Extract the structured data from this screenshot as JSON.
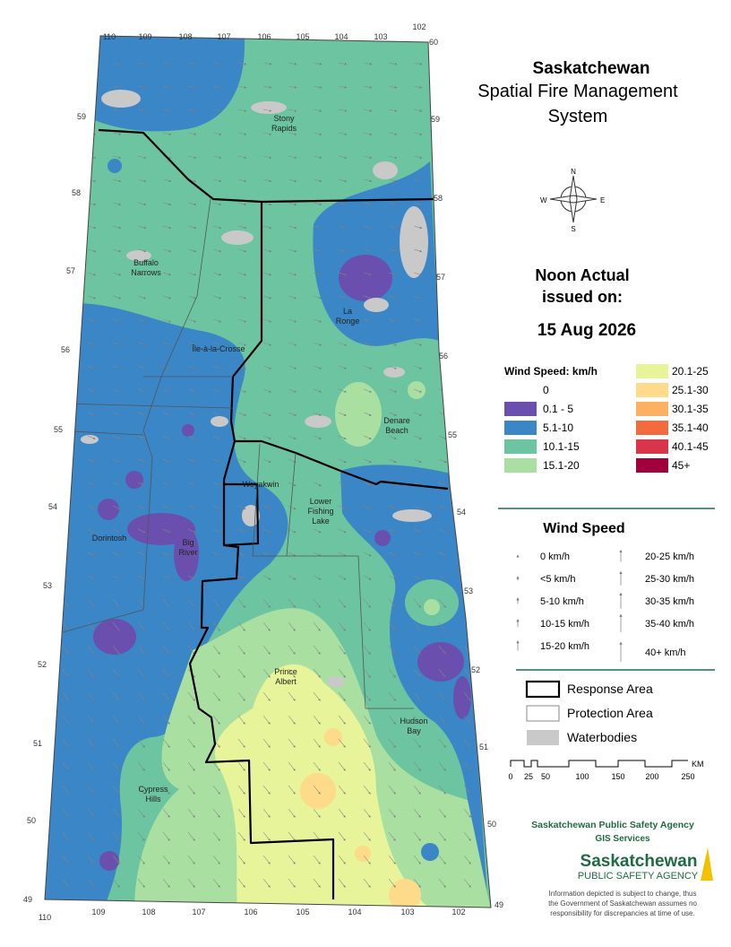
{
  "title": {
    "line1": "Saskatchewan",
    "line2": "Spatial Fire Management",
    "line3": "System"
  },
  "issue": {
    "line1": "Noon Actual",
    "line2": "issued on:",
    "date": "15 Aug 2026"
  },
  "compass": {
    "n": "N",
    "e": "E",
    "s": "S",
    "w": "W"
  },
  "speed_legend": {
    "title": "Wind Speed: km/h",
    "classes": [
      {
        "label": "0"
      },
      {
        "label": "0.1 - 5",
        "color": "#6a4fae"
      },
      {
        "label": "5.1-10",
        "color": "#3a86c6"
      },
      {
        "label": "10.1-15",
        "color": "#6cc4a0"
      },
      {
        "label": "15.1-20",
        "color": "#a9e0a2"
      },
      {
        "label": "20.1-25",
        "color": "#e7f49a"
      },
      {
        "label": "25.1-30",
        "color": "#fddb8a"
      },
      {
        "label": "30.1-35",
        "color": "#fbb062"
      },
      {
        "label": "35.1-40",
        "color": "#f26a3e"
      },
      {
        "label": "40.1-45",
        "color": "#d8344a"
      },
      {
        "label": "45+",
        "color": "#a0003c"
      }
    ]
  },
  "arrow_legend": {
    "title": "Wind Speed",
    "items": [
      "0 km/h",
      "<5 km/h",
      "5-10 km/h",
      "10-15 km/h",
      "15-20 km/h",
      "20-25 km/h",
      "25-30 km/h",
      "30-35 km/h",
      "35-40 km/h",
      "40+ km/h"
    ]
  },
  "area_legend": [
    "Response Area",
    "Protection Area",
    "Waterbodies"
  ],
  "scale": {
    "labels": [
      0,
      25,
      50,
      100,
      150,
      200,
      250
    ],
    "unit": "KM"
  },
  "agency": {
    "name": "Saskatchewan Public Safety Agency",
    "unit": "GIS  Services",
    "logo_top": "Saskatchewan",
    "logo_bottom": "PUBLIC SAFETY AGENCY",
    "disclaimer": [
      "Information depicted is subject to change, thus",
      "the Government of Saskatchewan assumes no",
      "responsibility for discrepancies at time of use."
    ]
  },
  "graticule": {
    "top": [
      110,
      109,
      108,
      107,
      106,
      105,
      104,
      103,
      102
    ],
    "top_corner": 60,
    "left": [
      59,
      58,
      57,
      56,
      55,
      54,
      53,
      52,
      51,
      50,
      49
    ],
    "right": [
      59,
      58,
      57,
      56,
      55,
      54,
      53,
      52,
      51,
      50,
      49
    ],
    "bottom": [
      110,
      109,
      108,
      107,
      106,
      105,
      104,
      103,
      102
    ]
  },
  "places": [
    [
      "Stony",
      "Rapids"
    ],
    [
      "Buffalo",
      "Narrows"
    ],
    [
      "La",
      "Ronge"
    ],
    [
      "Île-à-la-Crosse"
    ],
    [
      "Denare",
      "Beach"
    ],
    [
      "Weyakwin"
    ],
    [
      "Lower",
      "Fishing",
      "Lake"
    ],
    [
      "Dorintosh"
    ],
    [
      "Big",
      "River"
    ],
    [
      "Prince",
      "Albert"
    ],
    [
      "Hudson",
      "Bay"
    ],
    [
      "Cypress",
      "Hills"
    ]
  ]
}
